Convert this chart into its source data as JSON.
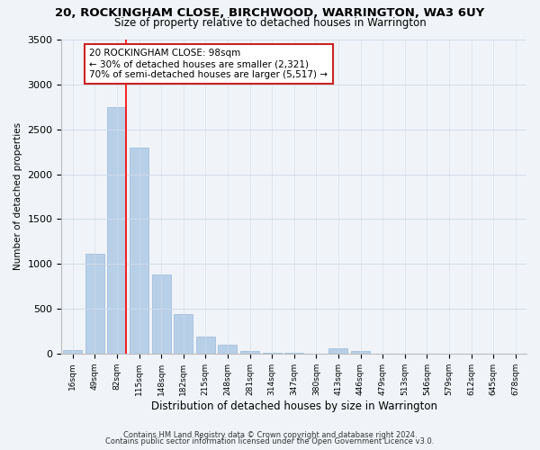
{
  "title": "20, ROCKINGHAM CLOSE, BIRCHWOOD, WARRINGTON, WA3 6UY",
  "subtitle": "Size of property relative to detached houses in Warrington",
  "xlabel": "Distribution of detached houses by size in Warrington",
  "ylabel": "Number of detached properties",
  "bar_labels": [
    "16sqm",
    "49sqm",
    "82sqm",
    "115sqm",
    "148sqm",
    "182sqm",
    "215sqm",
    "248sqm",
    "281sqm",
    "314sqm",
    "347sqm",
    "380sqm",
    "413sqm",
    "446sqm",
    "479sqm",
    "513sqm",
    "546sqm",
    "579sqm",
    "612sqm",
    "645sqm",
    "678sqm"
  ],
  "bar_values": [
    40,
    1110,
    2750,
    2300,
    880,
    435,
    190,
    95,
    25,
    10,
    5,
    0,
    55,
    25,
    0,
    0,
    0,
    0,
    0,
    0,
    0
  ],
  "bar_color": "#b8cfe8",
  "bar_edge_color": "#9ab8d8",
  "ylim": [
    0,
    3500
  ],
  "annotation_title": "20 ROCKINGHAM CLOSE: 98sqm",
  "annotation_line1": "← 30% of detached houses are smaller (2,321)",
  "annotation_line2": "70% of semi-detached houses are larger (5,517) →",
  "footnote1": "Contains HM Land Registry data © Crown copyright and database right 2024.",
  "footnote2": "Contains public sector information licensed under the Open Government Licence v3.0.",
  "bg_color": "#f0f4f8",
  "grid_color": "#d0dce8"
}
